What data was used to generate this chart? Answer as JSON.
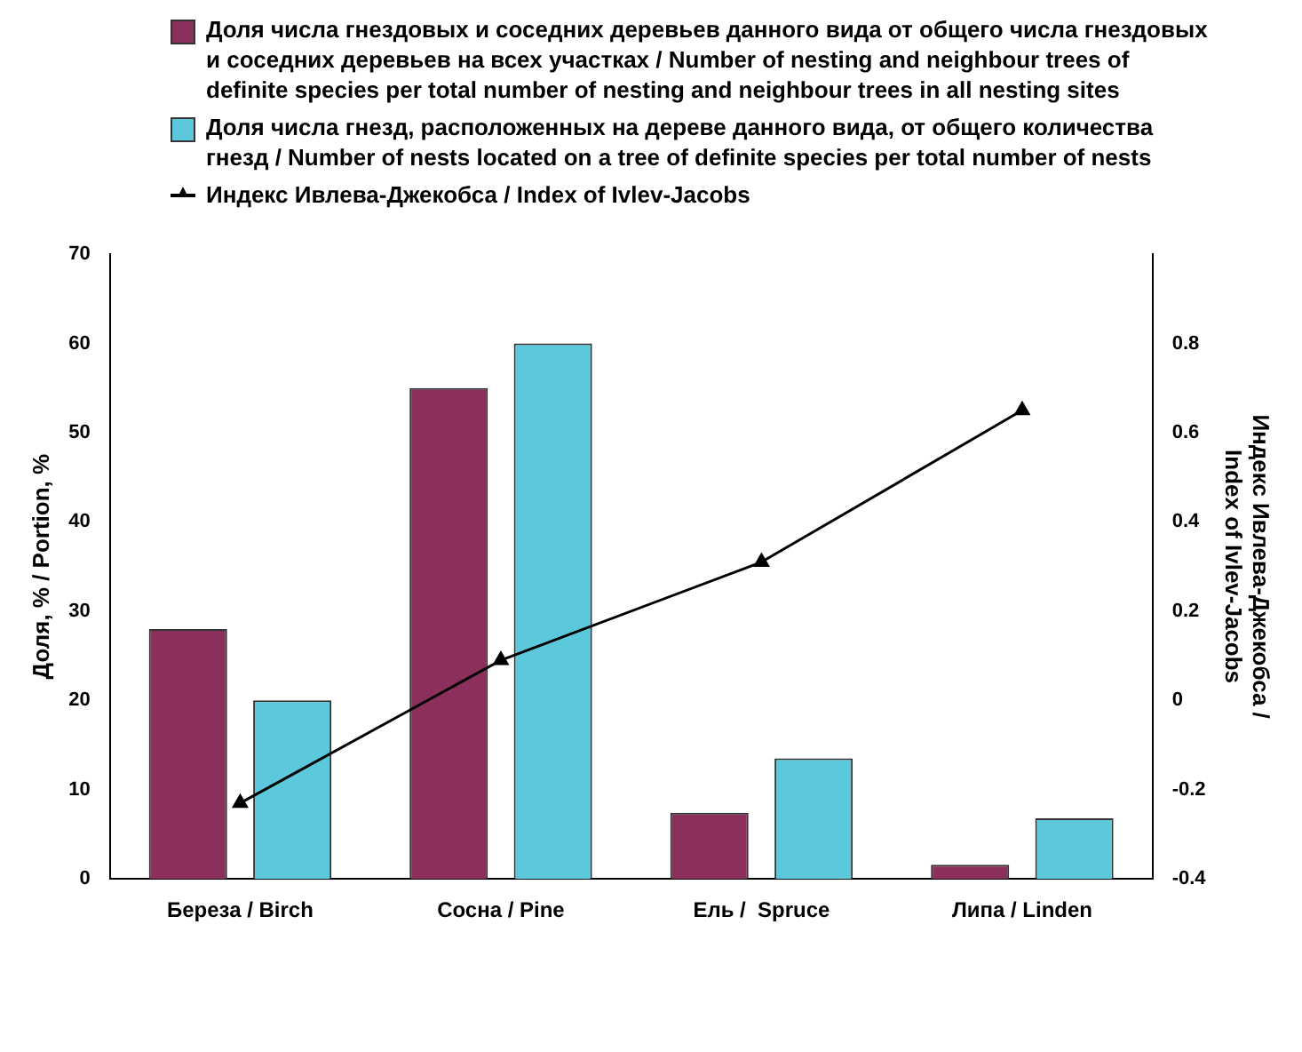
{
  "chart_data": {
    "type": "bar",
    "categories": [
      "Береза / Birch",
      "Сосна / Pine",
      "Ель /  Spruce",
      "Липа / Linden"
    ],
    "series": [
      {
        "name": "Доля числа гнездовых и соседних деревьев данного вида от общего числа гнездовых и соседних деревьев на всех участках / Number of nesting and neighbour trees of definite species per total number of nesting and neighbour trees in all nesting sites",
        "color": "#8b2f5c",
        "values": [
          28,
          55,
          7.4,
          1.6
        ]
      },
      {
        "name": "Доля числа гнезд, расположенных на дереве данного вида, от общего количества гнезд / Number of nests located on a tree of definite species per total number of nests",
        "color": "#5bc8dc",
        "values": [
          20,
          60,
          13.5,
          6.8
        ]
      },
      {
        "name": "Индекс Ивлева-Джекобса / Index of Ivlev-Jacobs",
        "type": "line",
        "axis": "y2",
        "color": "#000000",
        "marker": "triangle",
        "values": [
          -0.23,
          0.09,
          0.31,
          0.65
        ]
      }
    ],
    "ylabel": "Доля, % / Portion, %",
    "y2label": "Индекс Ивлева-Джекобса / Index of Ivlev-Jacobs",
    "ylim": [
      0,
      70
    ],
    "yticks": [
      0,
      10,
      20,
      30,
      40,
      50,
      60,
      70
    ],
    "y2lim": [
      -0.4,
      1.0
    ],
    "y2ticks": [
      -0.4,
      -0.2,
      0,
      0.2,
      0.4,
      0.6,
      0.8
    ],
    "grid": false,
    "legend": "top"
  }
}
